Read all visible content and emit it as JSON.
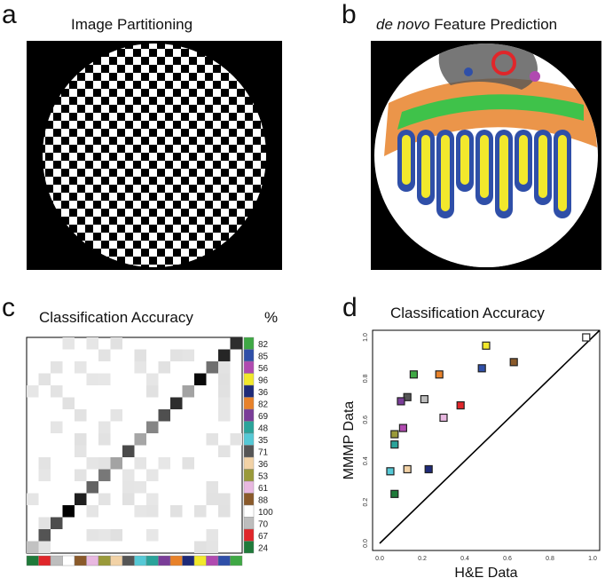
{
  "panels": {
    "a": {
      "letter": "a",
      "title": "Image Partitioning"
    },
    "b": {
      "letter": "b",
      "title_italic": "de novo",
      "title_rest": " Feature Prediction"
    },
    "c": {
      "letter": "c",
      "title": "Classification Accuracy",
      "percent_label": "%"
    },
    "d": {
      "letter": "d",
      "title": "Classification Accuracy"
    }
  },
  "chart_data": [
    {
      "type": "heatmap",
      "title": "Classification Accuracy",
      "unit_label": "%",
      "accuracy_percent": [
        82,
        85,
        56,
        96,
        36,
        82,
        69,
        48,
        35,
        71,
        36,
        53,
        61,
        88,
        100,
        70,
        67,
        24
      ],
      "class_colors": [
        "#3fa845",
        "#2f4fa8",
        "#b04ab0",
        "#f2e82c",
        "#1e2a78",
        "#e8822a",
        "#7a3d98",
        "#2aa39a",
        "#55c9d6",
        "#555555",
        "#f2d2a6",
        "#9a9a3a",
        "#e8b8e0",
        "#8a5a2a",
        "#ffffff",
        "#bdbdbd",
        "#e0262a",
        "#1f7a3a"
      ],
      "bottom_strip_colors": [
        "#1f7a3a",
        "#e0262a",
        "#bdbdbd",
        "#ffffff",
        "#8a5a2a",
        "#e8b8e0",
        "#9a9a3a",
        "#f2d2a6",
        "#555555",
        "#55c9d6",
        "#2aa39a",
        "#7a3d98",
        "#e8822a",
        "#1e2a78",
        "#f2e82c",
        "#b04ab0",
        "#2f4fa8",
        "#3fa845"
      ]
    },
    {
      "type": "scatter",
      "title": "Classification Accuracy",
      "xlabel": "H&E Data",
      "ylabel": "MMMP Data",
      "xlim": [
        0,
        1.0
      ],
      "ylim": [
        0,
        1.0
      ],
      "x_ticks": [
        "0.0",
        "0.2",
        "0.4",
        "0.6",
        "0.8",
        "1.0"
      ],
      "y_ticks": [
        "0.0",
        "0.2",
        "0.4",
        "0.6",
        "0.8",
        "1.0"
      ],
      "diagonal": true,
      "points": [
        {
          "x": 0.97,
          "y": 1.0,
          "color": "#ffffff"
        },
        {
          "x": 0.5,
          "y": 0.96,
          "color": "#f2e82c"
        },
        {
          "x": 0.63,
          "y": 0.88,
          "color": "#8a5a2a"
        },
        {
          "x": 0.48,
          "y": 0.85,
          "color": "#2f4fa8"
        },
        {
          "x": 0.16,
          "y": 0.82,
          "color": "#3fa845"
        },
        {
          "x": 0.28,
          "y": 0.82,
          "color": "#e8822a"
        },
        {
          "x": 0.13,
          "y": 0.71,
          "color": "#555555"
        },
        {
          "x": 0.1,
          "y": 0.69,
          "color": "#7a3d98"
        },
        {
          "x": 0.21,
          "y": 0.7,
          "color": "#bdbdbd"
        },
        {
          "x": 0.38,
          "y": 0.67,
          "color": "#e0262a"
        },
        {
          "x": 0.3,
          "y": 0.61,
          "color": "#e8b8e0"
        },
        {
          "x": 0.11,
          "y": 0.56,
          "color": "#b04ab0"
        },
        {
          "x": 0.07,
          "y": 0.53,
          "color": "#9a9a3a"
        },
        {
          "x": 0.07,
          "y": 0.48,
          "color": "#2aa39a"
        },
        {
          "x": 0.13,
          "y": 0.36,
          "color": "#f2d2a6"
        },
        {
          "x": 0.23,
          "y": 0.36,
          "color": "#1e2a78"
        },
        {
          "x": 0.05,
          "y": 0.35,
          "color": "#55c9d6"
        },
        {
          "x": 0.07,
          "y": 0.24,
          "color": "#1f7a3a"
        }
      ]
    }
  ]
}
